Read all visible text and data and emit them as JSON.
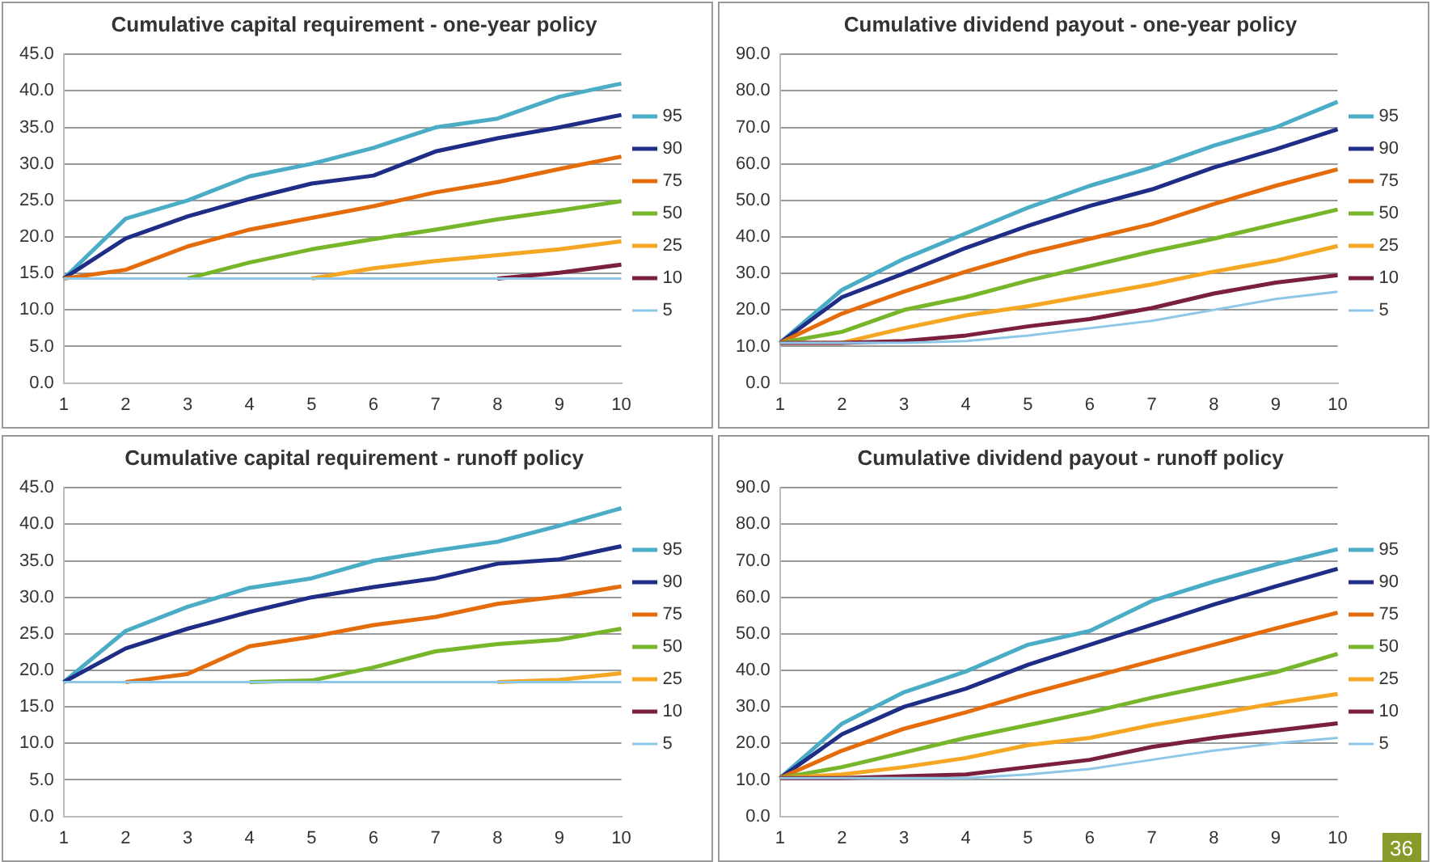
{
  "chart_data": [
    {
      "type": "line",
      "title": "Cumulative capital requirement - one-year policy",
      "categories": [
        "1",
        "2",
        "3",
        "4",
        "5",
        "6",
        "7",
        "8",
        "9",
        "10"
      ],
      "ylim": [
        0,
        45
      ],
      "yticks": [
        {
          "value": 0,
          "label": "0.0"
        },
        {
          "value": 5,
          "label": "5.0"
        },
        {
          "value": 10,
          "label": "10.0"
        },
        {
          "value": 15,
          "label": "15.0"
        },
        {
          "value": 20,
          "label": "20.0"
        },
        {
          "value": 25,
          "label": "25.0"
        },
        {
          "value": 30,
          "label": "30.0"
        },
        {
          "value": 35,
          "label": "35.0"
        },
        {
          "value": 40,
          "label": "40.0"
        },
        {
          "value": 45,
          "label": "45.0"
        }
      ],
      "grid": "y",
      "legend": "right",
      "marker": "none",
      "series": [
        {
          "name": "95",
          "color": "#4bacc6",
          "values": [
            14.3,
            22.5,
            25,
            28.3,
            30,
            32.2,
            35,
            36.2,
            39.2,
            41
          ]
        },
        {
          "name": "90",
          "color": "#1f2d86",
          "values": [
            14.3,
            19.8,
            22.8,
            25.2,
            27.3,
            28.4,
            31.7,
            33.5,
            35,
            36.7
          ]
        },
        {
          "name": "75",
          "color": "#e46c0a",
          "values": [
            14.3,
            15.5,
            18.7,
            21,
            22.6,
            24.2,
            26.1,
            27.5,
            29.3,
            31
          ]
        },
        {
          "name": "50",
          "color": "#77b52a",
          "values": [
            null,
            null,
            14.3,
            16.5,
            18.3,
            19.7,
            21,
            22.4,
            23.6,
            24.9
          ]
        },
        {
          "name": "25",
          "color": "#f5a623",
          "values": [
            null,
            null,
            null,
            null,
            14.3,
            15.7,
            16.7,
            17.5,
            18.3,
            19.4
          ]
        },
        {
          "name": "10",
          "color": "#7b1f3f",
          "values": [
            null,
            null,
            null,
            null,
            null,
            null,
            null,
            14.3,
            15.1,
            16.2
          ]
        },
        {
          "name": "5",
          "color": "#8fc7e8",
          "values": [
            14.3,
            14.3,
            14.3,
            14.3,
            14.3,
            14.3,
            14.3,
            14.3,
            14.3,
            14.3
          ]
        }
      ]
    },
    {
      "type": "line",
      "title": "Cumulative dividend payout - one-year policy",
      "categories": [
        "1",
        "2",
        "3",
        "4",
        "5",
        "6",
        "7",
        "8",
        "9",
        "10"
      ],
      "ylim": [
        0,
        90
      ],
      "yticks": [
        {
          "value": 0,
          "label": "0.0"
        },
        {
          "value": 10,
          "label": "10.0"
        },
        {
          "value": 20,
          "label": "20.0"
        },
        {
          "value": 30,
          "label": "30.0"
        },
        {
          "value": 40,
          "label": "40.0"
        },
        {
          "value": 50,
          "label": "50.0"
        },
        {
          "value": 60,
          "label": "60.0"
        },
        {
          "value": 70,
          "label": "70.0"
        },
        {
          "value": 80,
          "label": "80.0"
        },
        {
          "value": 90,
          "label": "90.0"
        }
      ],
      "grid": "y",
      "legend": "right",
      "marker": "none",
      "series": [
        {
          "name": "95",
          "color": "#4bacc6",
          "values": [
            11,
            25.5,
            34,
            41,
            48,
            54,
            59,
            65,
            70,
            77
          ]
        },
        {
          "name": "90",
          "color": "#1f2d86",
          "values": [
            11,
            23.5,
            30,
            37,
            43,
            48.5,
            53,
            59,
            64,
            69.5
          ]
        },
        {
          "name": "75",
          "color": "#e46c0a",
          "values": [
            11,
            19,
            25,
            30.5,
            35.5,
            39.5,
            43.5,
            49,
            54,
            58.5
          ]
        },
        {
          "name": "50",
          "color": "#77b52a",
          "values": [
            11,
            14,
            20,
            23.5,
            28,
            32,
            36,
            39.5,
            43.5,
            47.5
          ]
        },
        {
          "name": "25",
          "color": "#f5a623",
          "values": [
            11,
            11,
            15,
            18.5,
            21,
            24,
            27,
            30.5,
            33.5,
            37.5
          ]
        },
        {
          "name": "10",
          "color": "#7b1f3f",
          "values": [
            11,
            11,
            11.5,
            13,
            15.5,
            17.5,
            20.5,
            24.5,
            27.5,
            29.5
          ]
        },
        {
          "name": "5",
          "color": "#8fc7e8",
          "values": [
            11,
            11,
            11,
            11.5,
            13,
            15,
            17,
            20,
            23,
            25
          ]
        }
      ]
    },
    {
      "type": "line",
      "title": "Cumulative capital requirement - runoff policy",
      "categories": [
        "1",
        "2",
        "3",
        "4",
        "5",
        "6",
        "7",
        "8",
        "9",
        "10"
      ],
      "ylim": [
        0,
        45
      ],
      "yticks": [
        {
          "value": 0,
          "label": "0.0"
        },
        {
          "value": 5,
          "label": "5.0"
        },
        {
          "value": 10,
          "label": "10.0"
        },
        {
          "value": 15,
          "label": "15.0"
        },
        {
          "value": 20,
          "label": "20.0"
        },
        {
          "value": 25,
          "label": "25.0"
        },
        {
          "value": 30,
          "label": "30.0"
        },
        {
          "value": 35,
          "label": "35.0"
        },
        {
          "value": 40,
          "label": "40.0"
        },
        {
          "value": 45,
          "label": "45.0"
        }
      ],
      "grid": "y",
      "legend": "right",
      "marker": "none",
      "series": [
        {
          "name": "95",
          "color": "#4bacc6",
          "values": [
            18.4,
            25.4,
            28.7,
            31.3,
            32.6,
            35,
            36.4,
            37.6,
            39.8,
            42.2
          ]
        },
        {
          "name": "90",
          "color": "#1f2d86",
          "values": [
            18.4,
            23,
            25.7,
            28,
            30,
            31.4,
            32.6,
            34.6,
            35.2,
            37
          ]
        },
        {
          "name": "75",
          "color": "#e46c0a",
          "values": [
            null,
            18.4,
            19.5,
            23.3,
            24.6,
            26.2,
            27.3,
            29.1,
            30.1,
            31.5
          ]
        },
        {
          "name": "50",
          "color": "#77b52a",
          "values": [
            null,
            null,
            null,
            18.4,
            18.6,
            20.4,
            22.6,
            23.6,
            24.2,
            25.7
          ]
        },
        {
          "name": "25",
          "color": "#f5a623",
          "values": [
            null,
            null,
            null,
            null,
            null,
            null,
            null,
            18.4,
            18.7,
            19.6
          ]
        },
        {
          "name": "10",
          "color": "#7b1f3f",
          "values": [
            null,
            null,
            null,
            null,
            null,
            null,
            null,
            null,
            null,
            null
          ]
        },
        {
          "name": "5",
          "color": "#8fc7e8",
          "values": [
            18.4,
            18.4,
            18.4,
            18.4,
            18.4,
            18.4,
            18.4,
            18.4,
            18.4,
            18.4
          ]
        }
      ]
    },
    {
      "type": "line",
      "title": "Cumulative dividend payout - runoff policy",
      "categories": [
        "1",
        "2",
        "3",
        "4",
        "5",
        "6",
        "7",
        "8",
        "9",
        "10"
      ],
      "ylim": [
        0,
        90
      ],
      "yticks": [
        {
          "value": 0,
          "label": "0.0"
        },
        {
          "value": 10,
          "label": "10.0"
        },
        {
          "value": 20,
          "label": "20.0"
        },
        {
          "value": 30,
          "label": "30.0"
        },
        {
          "value": 40,
          "label": "40.0"
        },
        {
          "value": 50,
          "label": "50.0"
        },
        {
          "value": 60,
          "label": "60.0"
        },
        {
          "value": 70,
          "label": "70.0"
        },
        {
          "value": 80,
          "label": "80.0"
        },
        {
          "value": 90,
          "label": "90.0"
        }
      ],
      "grid": "y",
      "legend": "right",
      "marker": "none",
      "annotations": [
        "36"
      ],
      "series": [
        {
          "name": "95",
          "color": "#4bacc6",
          "values": [
            10.5,
            25.4,
            34,
            39.7,
            47,
            50.8,
            59,
            64.3,
            69,
            73.2
          ]
        },
        {
          "name": "90",
          "color": "#1f2d86",
          "values": [
            10.5,
            22.5,
            30,
            35,
            41.5,
            47,
            52.5,
            58,
            63,
            67.8
          ]
        },
        {
          "name": "75",
          "color": "#e46c0a",
          "values": [
            10.5,
            18,
            24,
            28.5,
            33.5,
            38,
            42.5,
            47,
            51.5,
            55.8
          ]
        },
        {
          "name": "50",
          "color": "#77b52a",
          "values": [
            10.5,
            13.5,
            17.5,
            21.5,
            25,
            28.5,
            32.5,
            36,
            39.5,
            44.5
          ]
        },
        {
          "name": "25",
          "color": "#f5a623",
          "values": [
            10.5,
            11.5,
            13.5,
            16,
            19.5,
            21.5,
            25,
            28,
            31,
            33.5
          ]
        },
        {
          "name": "10",
          "color": "#7b1f3f",
          "values": [
            10.5,
            10.5,
            11,
            11.5,
            13.5,
            15.5,
            19,
            21.5,
            23.5,
            25.5
          ]
        },
        {
          "name": "5",
          "color": "#8fc7e8",
          "values": [
            10.5,
            10.5,
            10.5,
            10.5,
            11.5,
            13,
            15.5,
            18,
            20,
            21.5
          ]
        }
      ]
    }
  ]
}
